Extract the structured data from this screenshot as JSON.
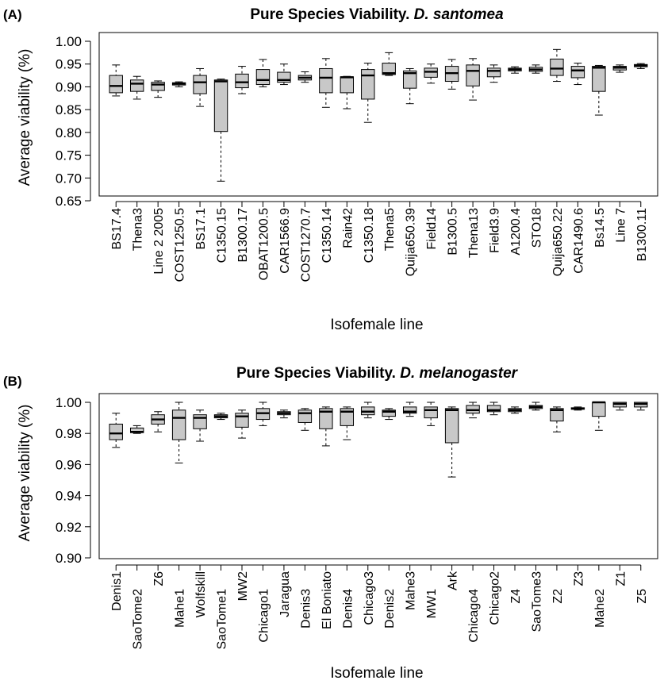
{
  "chart_data": [
    {
      "type": "box",
      "panel_label": "(A)",
      "title_prefix": "Pure Species Viability. ",
      "title_species": "D. santomea",
      "xlabel": "Isofemale line",
      "ylabel": "Average viability (%)",
      "ylim": [
        0.65,
        1.0
      ],
      "yticks": [
        "0.65",
        "0.70",
        "0.75",
        "0.80",
        "0.85",
        "0.90",
        "0.95",
        "1.00"
      ],
      "categories": [
        "BS17.4",
        "Thena3",
        "Line 2 2005",
        "COST1250.5",
        "BS17.1",
        "C1350.15",
        "B1300.17",
        "OBAT1200.5",
        "CAR1566.9",
        "COST1270.7",
        "C1350.14",
        "Rain42",
        "C1350.18",
        "Thena5",
        "Quija650.39",
        "Field14",
        "B1300.5",
        "Thena13",
        "Field3.9",
        "A1200.4",
        "STO18",
        "Quija650.22",
        "CAR1490.6",
        "Bs14.5",
        "Line 7",
        "B1300.11"
      ],
      "boxes": [
        {
          "min": 0.88,
          "q1": 0.887,
          "median": 0.902,
          "q3": 0.925,
          "max": 0.948
        },
        {
          "min": 0.873,
          "q1": 0.89,
          "median": 0.907,
          "q3": 0.915,
          "max": 0.923
        },
        {
          "min": 0.877,
          "q1": 0.892,
          "median": 0.905,
          "q3": 0.91,
          "max": 0.913
        },
        {
          "min": 0.9,
          "q1": 0.904,
          "median": 0.907,
          "q3": 0.909,
          "max": 0.911
        },
        {
          "min": 0.857,
          "q1": 0.885,
          "median": 0.91,
          "q3": 0.925,
          "max": 0.94
        },
        {
          "min": 0.693,
          "q1": 0.802,
          "median": 0.912,
          "q3": 0.915,
          "max": 0.917
        },
        {
          "min": 0.885,
          "q1": 0.898,
          "median": 0.91,
          "q3": 0.928,
          "max": 0.945
        },
        {
          "min": 0.9,
          "q1": 0.905,
          "median": 0.915,
          "q3": 0.938,
          "max": 0.96
        },
        {
          "min": 0.905,
          "q1": 0.91,
          "median": 0.915,
          "q3": 0.932,
          "max": 0.95
        },
        {
          "min": 0.91,
          "q1": 0.915,
          "median": 0.92,
          "q3": 0.925,
          "max": 0.933
        },
        {
          "min": 0.855,
          "q1": 0.887,
          "median": 0.92,
          "q3": 0.94,
          "max": 0.962
        },
        {
          "min": 0.852,
          "q1": 0.887,
          "median": 0.921,
          "q3": 0.922,
          "max": 0.923
        },
        {
          "min": 0.822,
          "q1": 0.873,
          "median": 0.925,
          "q3": 0.938,
          "max": 0.952
        },
        {
          "min": 0.925,
          "q1": 0.927,
          "median": 0.93,
          "q3": 0.952,
          "max": 0.975
        },
        {
          "min": 0.863,
          "q1": 0.897,
          "median": 0.93,
          "q3": 0.935,
          "max": 0.94
        },
        {
          "min": 0.908,
          "q1": 0.921,
          "median": 0.933,
          "q3": 0.941,
          "max": 0.95
        },
        {
          "min": 0.895,
          "q1": 0.912,
          "median": 0.93,
          "q3": 0.945,
          "max": 0.96
        },
        {
          "min": 0.871,
          "q1": 0.902,
          "median": 0.935,
          "q3": 0.948,
          "max": 0.962
        },
        {
          "min": 0.91,
          "q1": 0.922,
          "median": 0.935,
          "q3": 0.941,
          "max": 0.948
        },
        {
          "min": 0.93,
          "q1": 0.935,
          "median": 0.938,
          "q3": 0.941,
          "max": 0.944
        },
        {
          "min": 0.93,
          "q1": 0.934,
          "median": 0.938,
          "q3": 0.943,
          "max": 0.948
        },
        {
          "min": 0.912,
          "q1": 0.925,
          "median": 0.94,
          "q3": 0.961,
          "max": 0.982
        },
        {
          "min": 0.905,
          "q1": 0.92,
          "median": 0.936,
          "q3": 0.945,
          "max": 0.952
        },
        {
          "min": 0.838,
          "q1": 0.89,
          "median": 0.942,
          "q3": 0.945,
          "max": 0.947
        },
        {
          "min": 0.932,
          "q1": 0.937,
          "median": 0.942,
          "q3": 0.945,
          "max": 0.948
        },
        {
          "min": 0.94,
          "q1": 0.944,
          "median": 0.947,
          "q3": 0.949,
          "max": 0.951
        }
      ]
    },
    {
      "type": "box",
      "panel_label": "(B)",
      "title_prefix": "Pure Species Viability. ",
      "title_species": "D. melanogaster",
      "xlabel": "Isofemale line",
      "ylabel": "Average viability (%)",
      "ylim": [
        0.9,
        1.0
      ],
      "yticks": [
        "0.90",
        "0.92",
        "0.94",
        "0.96",
        "0.98",
        "1.00"
      ],
      "categories": [
        "Denis1",
        "SaoTome2",
        "Z6",
        "Mahe1",
        "Wolfskill",
        "SaoTome1",
        "MW2",
        "Chicago1",
        "Jaragua",
        "Denis3",
        "El Boniato",
        "Denis4",
        "Chicago3",
        "Denis2",
        "Mahe3",
        "MW1",
        "Ark",
        "Chicago4",
        "Chicago2",
        "Z4",
        "SaoTome3",
        "Z2",
        "Z3",
        "Mahe2",
        "Z1",
        "Z5"
      ],
      "boxes": [
        {
          "min": 0.971,
          "q1": 0.976,
          "median": 0.98,
          "q3": 0.986,
          "max": 0.993
        },
        {
          "min": 0.98,
          "q1": 0.9805,
          "median": 0.981,
          "q3": 0.9835,
          "max": 0.985
        },
        {
          "min": 0.981,
          "q1": 0.986,
          "median": 0.989,
          "q3": 0.992,
          "max": 0.994
        },
        {
          "min": 0.961,
          "q1": 0.976,
          "median": 0.99,
          "q3": 0.995,
          "max": 1.0
        },
        {
          "min": 0.975,
          "q1": 0.983,
          "median": 0.99,
          "q3": 0.992,
          "max": 0.995
        },
        {
          "min": 0.989,
          "q1": 0.99,
          "median": 0.991,
          "q3": 0.992,
          "max": 0.993
        },
        {
          "min": 0.977,
          "q1": 0.984,
          "median": 0.991,
          "q3": 0.993,
          "max": 0.995
        },
        {
          "min": 0.985,
          "q1": 0.989,
          "median": 0.993,
          "q3": 0.996,
          "max": 1.0
        },
        {
          "min": 0.99,
          "q1": 0.992,
          "median": 0.993,
          "q3": 0.994,
          "max": 0.995
        },
        {
          "min": 0.982,
          "q1": 0.987,
          "median": 0.993,
          "q3": 0.995,
          "max": 0.996
        },
        {
          "min": 0.972,
          "q1": 0.983,
          "median": 0.994,
          "q3": 0.996,
          "max": 0.997
        },
        {
          "min": 0.976,
          "q1": 0.985,
          "median": 0.994,
          "q3": 0.996,
          "max": 0.997
        },
        {
          "min": 0.99,
          "q1": 0.992,
          "median": 0.994,
          "q3": 0.997,
          "max": 1.0
        },
        {
          "min": 0.989,
          "q1": 0.991,
          "median": 0.994,
          "q3": 0.995,
          "max": 0.996
        },
        {
          "min": 0.991,
          "q1": 0.993,
          "median": 0.994,
          "q3": 0.997,
          "max": 1.0
        },
        {
          "min": 0.985,
          "q1": 0.99,
          "median": 0.995,
          "q3": 0.997,
          "max": 1.0
        },
        {
          "min": 0.952,
          "q1": 0.974,
          "median": 0.995,
          "q3": 0.996,
          "max": 0.997
        },
        {
          "min": 0.99,
          "q1": 0.993,
          "median": 0.995,
          "q3": 0.998,
          "max": 1.0
        },
        {
          "min": 0.992,
          "q1": 0.994,
          "median": 0.995,
          "q3": 0.998,
          "max": 1.0
        },
        {
          "min": 0.993,
          "q1": 0.994,
          "median": 0.995,
          "q3": 0.996,
          "max": 0.997
        },
        {
          "min": 0.995,
          "q1": 0.996,
          "median": 0.997,
          "q3": 0.998,
          "max": 1.0
        },
        {
          "min": 0.981,
          "q1": 0.988,
          "median": 0.995,
          "q3": 0.996,
          "max": 0.997
        },
        {
          "min": 0.995,
          "q1": 0.9955,
          "median": 0.996,
          "q3": 0.9965,
          "max": 0.997
        },
        {
          "min": 0.982,
          "q1": 0.991,
          "median": 1.0,
          "q3": 1.0,
          "max": 1.0
        },
        {
          "min": 0.995,
          "q1": 0.997,
          "median": 0.999,
          "q3": 1.0,
          "max": 1.0
        },
        {
          "min": 0.995,
          "q1": 0.997,
          "median": 0.999,
          "q3": 1.0,
          "max": 1.0
        }
      ]
    }
  ]
}
